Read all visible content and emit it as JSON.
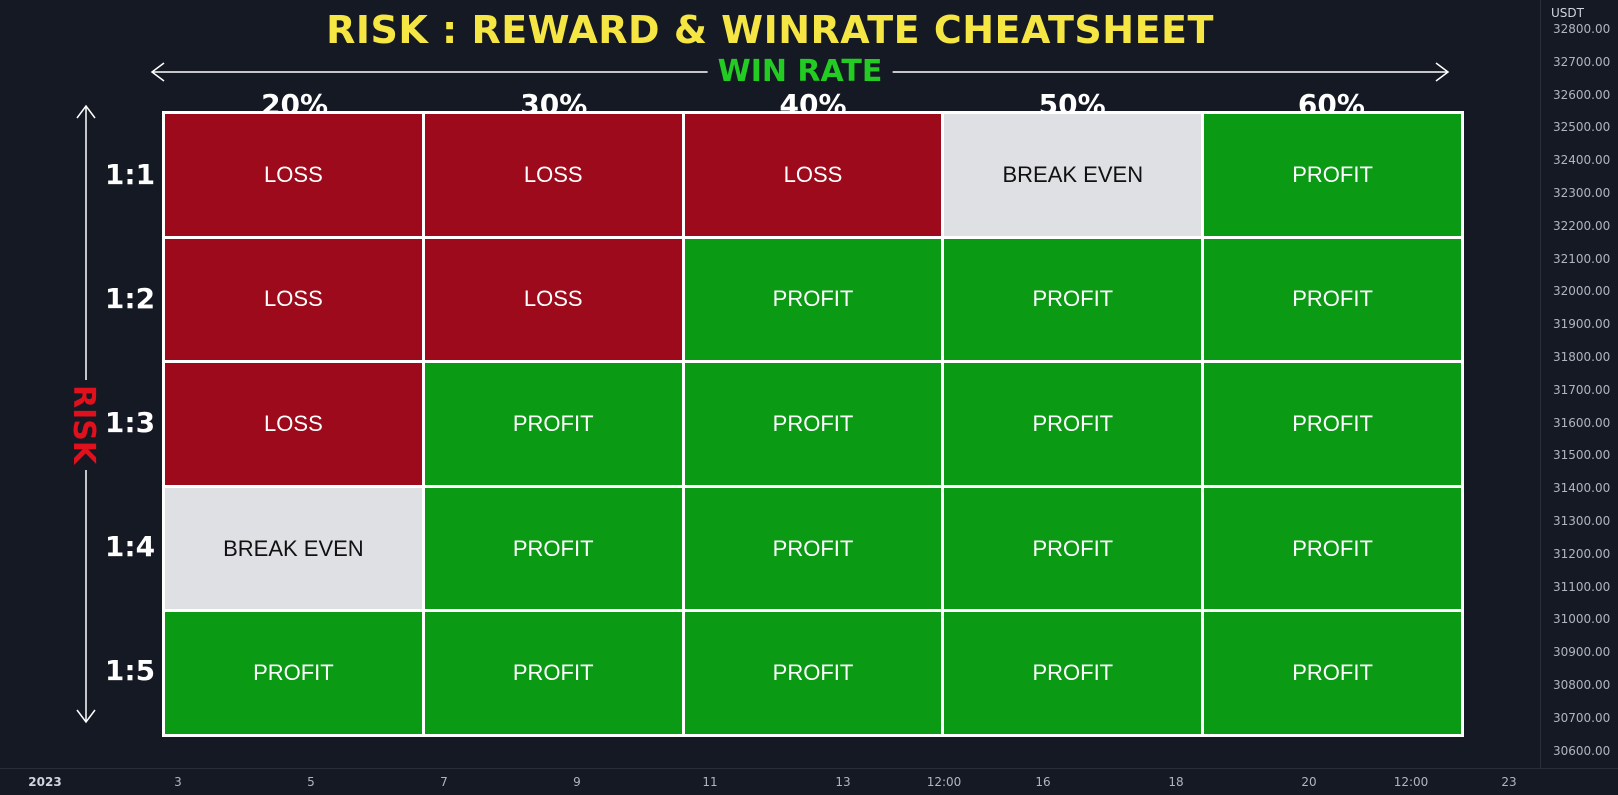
{
  "title": "RISK : REWARD & WINRATE CHEATSHEET",
  "x_axis_label": "WIN RATE",
  "y_axis_label": "RISK",
  "colors": {
    "loss": "#9d0a1b",
    "profit": "#0a9a14",
    "break_even": "#dfe0e3",
    "title": "#f5e644",
    "winrate": "#22cc22",
    "risk": "#e0101c"
  },
  "chart_data": {
    "type": "table",
    "title": "RISK : REWARD & WINRATE CHEATSHEET",
    "xlabel": "WIN RATE",
    "ylabel": "RISK",
    "columns": [
      "20%",
      "30%",
      "40%",
      "50%",
      "60%"
    ],
    "rows": [
      "1:1",
      "1:2",
      "1:3",
      "1:4",
      "1:5"
    ],
    "cells": [
      [
        "LOSS",
        "LOSS",
        "LOSS",
        "BREAK EVEN",
        "PROFIT"
      ],
      [
        "LOSS",
        "LOSS",
        "PROFIT",
        "PROFIT",
        "PROFIT"
      ],
      [
        "LOSS",
        "PROFIT",
        "PROFIT",
        "PROFIT",
        "PROFIT"
      ],
      [
        "BREAK EVEN",
        "PROFIT",
        "PROFIT",
        "PROFIT",
        "PROFIT"
      ],
      [
        "PROFIT",
        "PROFIT",
        "PROFIT",
        "PROFIT",
        "PROFIT"
      ]
    ]
  },
  "price_axis": {
    "unit": "USDT",
    "ticks": [
      "32800.00",
      "32700.00",
      "32600.00",
      "32500.00",
      "32400.00",
      "32300.00",
      "32200.00",
      "32100.00",
      "32000.00",
      "31900.00",
      "31800.00",
      "31700.00",
      "31600.00",
      "31500.00",
      "31400.00",
      "31300.00",
      "31200.00",
      "31100.00",
      "31000.00",
      "30900.00",
      "30800.00",
      "30700.00",
      "30600.00"
    ]
  },
  "time_axis": {
    "ticks": [
      "2023",
      "3",
      "5",
      "7",
      "9",
      "11",
      "13",
      "12:00",
      "16",
      "18",
      "20",
      "12:00",
      "23"
    ]
  }
}
